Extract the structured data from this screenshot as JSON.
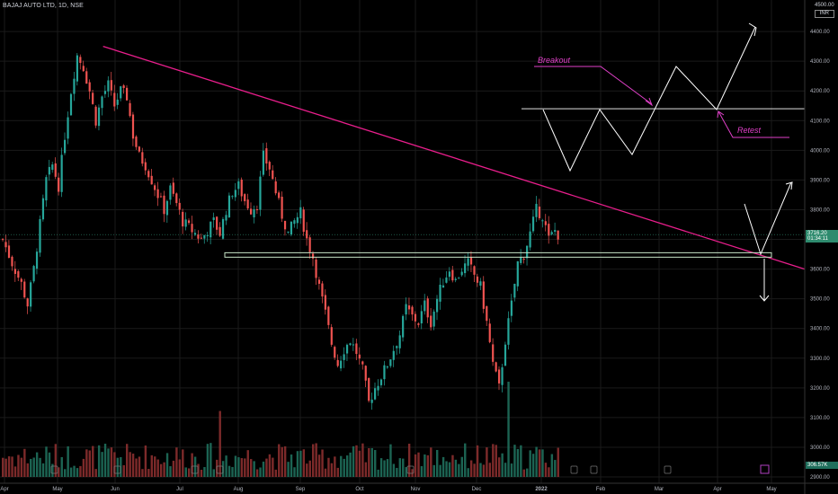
{
  "header": {
    "symbol_line": "BAJAJ AUTO LTD, 1D, NSE"
  },
  "currency": {
    "top_tick": "4500.00",
    "unit": "INR"
  },
  "price_tags": {
    "last_price": "3716.20",
    "countdown": "01:34:11",
    "volume_value": "306.57K"
  },
  "annotations": {
    "breakout": "Breakout",
    "retest": "Retest"
  },
  "colors": {
    "up": "#26a69a",
    "down": "#ef5350",
    "trendline": "#e91e8c",
    "annotation": "#e040c8",
    "support": "#c8e6c9",
    "grid": "#1a1a1a"
  },
  "chart_data": {
    "type": "candlestick",
    "symbol": "BAJAJ AUTO LTD",
    "interval": "1D",
    "exchange": "NSE",
    "ylim": [
      2900,
      4500
    ],
    "y_ticks": [
      2900,
      3000,
      3100,
      3200,
      3300,
      3400,
      3500,
      3600,
      3700,
      3800,
      3900,
      4000,
      4100,
      4200,
      4300,
      4400
    ],
    "x_ticks": [
      "Apr",
      "May",
      "Jun",
      "Jul",
      "Aug",
      "Sep",
      "Oct",
      "Nov",
      "Dec",
      "2022",
      "Feb",
      "Mar",
      "Apr",
      "May"
    ],
    "last_price": 3716.2,
    "price_path": [
      [
        0,
        3700
      ],
      [
        3,
        3620
      ],
      [
        6,
        3550
      ],
      [
        8,
        3480
      ],
      [
        10,
        3600
      ],
      [
        12,
        3750
      ],
      [
        14,
        3900
      ],
      [
        16,
        3950
      ],
      [
        18,
        3880
      ],
      [
        20,
        4050
      ],
      [
        22,
        4200
      ],
      [
        24,
        4320
      ],
      [
        26,
        4280
      ],
      [
        28,
        4200
      ],
      [
        30,
        4100
      ],
      [
        32,
        4180
      ],
      [
        34,
        4220
      ],
      [
        36,
        4150
      ],
      [
        38,
        4200
      ],
      [
        40,
        4180
      ],
      [
        42,
        4050
      ],
      [
        44,
        3980
      ],
      [
        46,
        3950
      ],
      [
        48,
        3900
      ],
      [
        50,
        3850
      ],
      [
        52,
        3800
      ],
      [
        54,
        3870
      ],
      [
        56,
        3820
      ],
      [
        58,
        3760
      ],
      [
        60,
        3740
      ],
      [
        62,
        3720
      ],
      [
        64,
        3700
      ],
      [
        66,
        3730
      ],
      [
        68,
        3760
      ],
      [
        70,
        3720
      ],
      [
        72,
        3800
      ],
      [
        74,
        3860
      ],
      [
        76,
        3880
      ],
      [
        78,
        3830
      ],
      [
        80,
        3800
      ],
      [
        82,
        3820
      ],
      [
        84,
        3980
      ],
      [
        86,
        3940
      ],
      [
        88,
        3860
      ],
      [
        90,
        3780
      ],
      [
        92,
        3720
      ],
      [
        94,
        3760
      ],
      [
        96,
        3790
      ],
      [
        98,
        3700
      ],
      [
        100,
        3640
      ],
      [
        102,
        3540
      ],
      [
        104,
        3450
      ],
      [
        106,
        3350
      ],
      [
        108,
        3280
      ],
      [
        110,
        3330
      ],
      [
        112,
        3360
      ],
      [
        114,
        3320
      ],
      [
        116,
        3260
      ],
      [
        118,
        3150
      ],
      [
        120,
        3200
      ],
      [
        122,
        3240
      ],
      [
        124,
        3280
      ],
      [
        126,
        3330
      ],
      [
        128,
        3380
      ],
      [
        130,
        3470
      ],
      [
        132,
        3440
      ],
      [
        134,
        3420
      ],
      [
        136,
        3480
      ],
      [
        138,
        3420
      ],
      [
        140,
        3500
      ],
      [
        142,
        3560
      ],
      [
        144,
        3600
      ],
      [
        146,
        3560
      ],
      [
        148,
        3600
      ],
      [
        150,
        3620
      ],
      [
        152,
        3580
      ],
      [
        154,
        3540
      ],
      [
        156,
        3420
      ],
      [
        158,
        3280
      ],
      [
        160,
        3200
      ],
      [
        162,
        3360
      ],
      [
        164,
        3480
      ],
      [
        166,
        3620
      ],
      [
        168,
        3650
      ],
      [
        170,
        3720
      ],
      [
        172,
        3800
      ],
      [
        174,
        3780
      ],
      [
        176,
        3700
      ],
      [
        178,
        3730
      ],
      [
        179,
        3716
      ]
    ],
    "trendline_desc": {
      "from": [
        0.123,
        4350
      ],
      "to": [
        0.96,
        3600
      ]
    },
    "support_zone": [
      3640,
      3655
    ],
    "breakout_level": 4140
  }
}
